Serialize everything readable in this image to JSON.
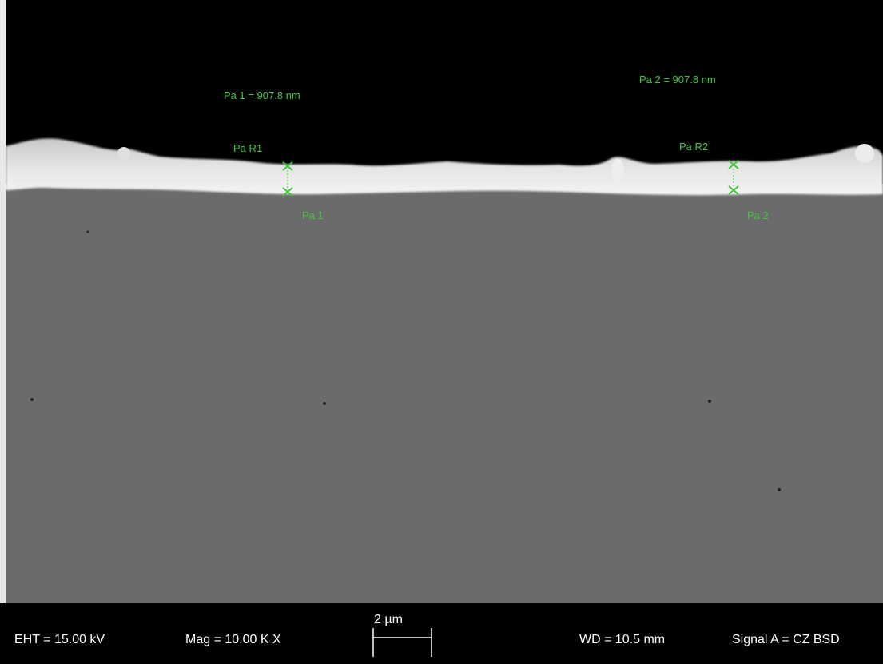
{
  "annotations": {
    "thickness_1": "Pa 1 = 907.8 nm",
    "thickness_2": "Pa 2 = 907.8 nm",
    "marker_top_1": "Pa R1",
    "marker_bottom_1": "Pa 1",
    "marker_top_2": "Pa R2",
    "marker_bottom_2": "Pa 2"
  },
  "info_bar": {
    "eht": "EHT = 15.00 kV",
    "mag": "Mag =  10.00 K X",
    "scale_bar": "2 µm",
    "wd": "WD = 10.5 mm",
    "signal": "Signal A = CZ BSD"
  }
}
